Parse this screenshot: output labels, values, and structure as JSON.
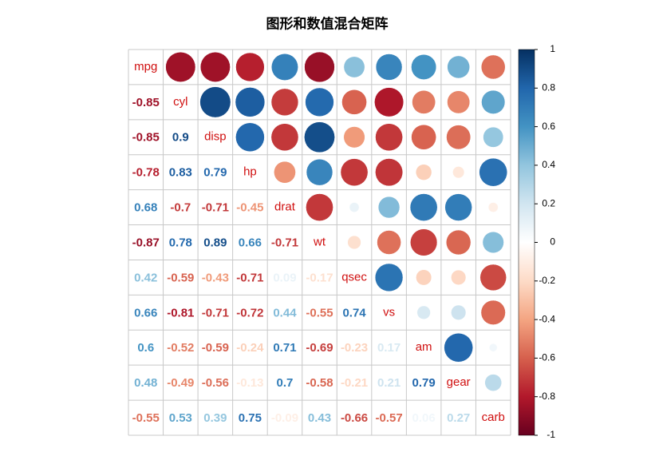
{
  "chart_data": {
    "type": "corrplot",
    "title": "图形和数值混合矩阵",
    "variables": [
      "mpg",
      "cyl",
      "disp",
      "hp",
      "drat",
      "wt",
      "qsec",
      "vs",
      "am",
      "gear",
      "carb"
    ],
    "values": [
      [],
      [
        -0.85
      ],
      [
        -0.85,
        0.9
      ],
      [
        -0.78,
        0.83,
        0.79
      ],
      [
        0.68,
        -0.7,
        -0.71,
        -0.45
      ],
      [
        -0.87,
        0.78,
        0.89,
        0.66,
        -0.71
      ],
      [
        0.42,
        -0.59,
        -0.43,
        -0.71,
        0.09,
        -0.17
      ],
      [
        0.66,
        -0.81,
        -0.71,
        -0.72,
        0.44,
        -0.55,
        0.74
      ],
      [
        0.6,
        -0.52,
        -0.59,
        -0.24,
        0.71,
        -0.69,
        -0.23,
        0.17
      ],
      [
        0.48,
        -0.49,
        -0.56,
        -0.13,
        0.7,
        -0.58,
        -0.21,
        0.21,
        0.79
      ],
      [
        -0.55,
        0.53,
        0.39,
        0.75,
        -0.09,
        0.43,
        -0.66,
        -0.57,
        0.06,
        0.27
      ]
    ],
    "colormap": [
      "#67001F",
      "#B2182B",
      "#D6604D",
      "#F4A582",
      "#FDDBC7",
      "#FFFFFF",
      "#D1E5F0",
      "#92C5DE",
      "#4393C3",
      "#2166AC",
      "#053061"
    ],
    "ylim": [
      -1,
      1
    ],
    "yticks": [
      -1,
      -0.8,
      -0.6,
      -0.4,
      -0.2,
      0,
      0.2,
      0.4,
      0.6,
      0.8,
      1
    ],
    "label_color": "#D01010"
  }
}
